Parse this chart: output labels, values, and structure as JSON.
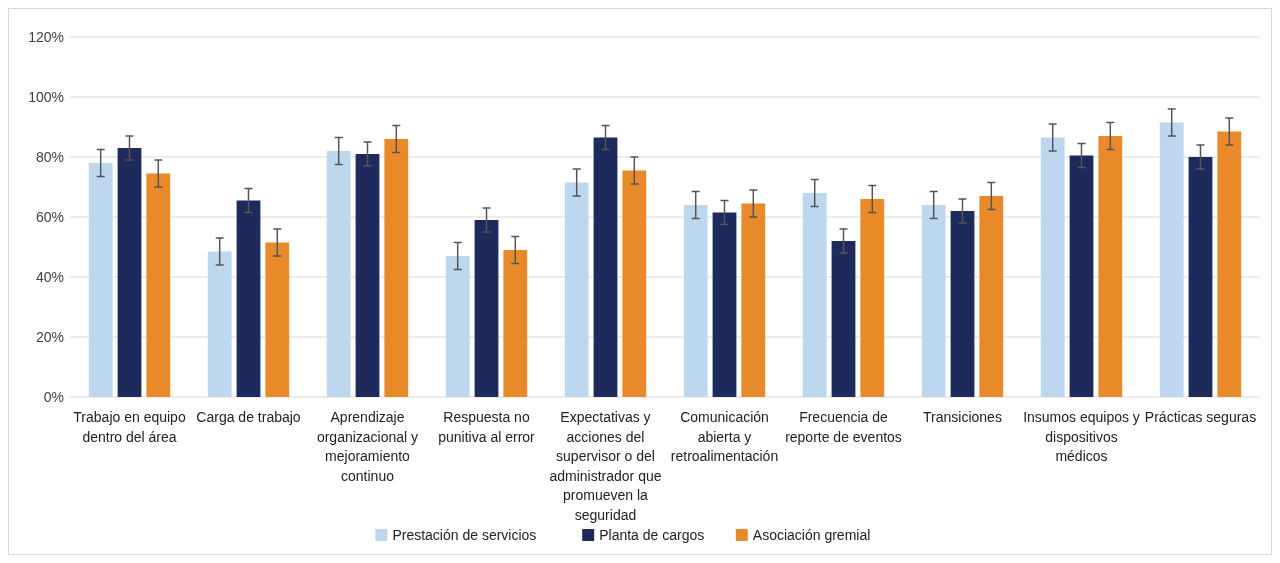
{
  "chart_data": {
    "type": "bar",
    "categories": [
      "Trabajo en equipo dentro del área",
      "Carga de trabajo",
      "Aprendizaje organizacional y mejoramiento continuo",
      "Respuesta no punitiva al error",
      "Expectativas y acciones del supervisor o del administrador que promueven la seguridad",
      "Comunicación abierta y retroalimentación",
      "Frecuencia de reporte de eventos",
      "Transiciones",
      "Insumos equipos y dispositivos médicos",
      "Prácticas seguras"
    ],
    "series": [
      {
        "name": "Prestación de servicios",
        "color": "#bdd7ee",
        "values": [
          78,
          48.5,
          82,
          47,
          71.5,
          64,
          68,
          64,
          86.5,
          91.5
        ],
        "errors": [
          4.5,
          4.5,
          4.5,
          4.5,
          4.5,
          4.5,
          4.5,
          4.5,
          4.5,
          4.5
        ]
      },
      {
        "name": "Planta de cargos",
        "color": "#1f2a5c",
        "values": [
          83,
          65.5,
          81,
          59,
          86.5,
          61.5,
          52,
          62,
          80.5,
          80
        ],
        "errors": [
          4,
          4,
          4,
          4,
          4,
          4,
          4,
          4,
          4,
          4
        ]
      },
      {
        "name": "Asociación gremial",
        "color": "#e8892a",
        "values": [
          74.5,
          51.5,
          86,
          49,
          75.5,
          64.5,
          66,
          67,
          87,
          88.5
        ],
        "errors": [
          4.5,
          4.5,
          4.5,
          4.5,
          4.5,
          4.5,
          4.5,
          4.5,
          4.5,
          4.5
        ]
      }
    ],
    "ylim": [
      0,
      120
    ],
    "yticks": [
      {
        "value": 0,
        "label": "0%"
      },
      {
        "value": 20,
        "label": "20%"
      },
      {
        "value": 40,
        "label": "40%"
      },
      {
        "value": 60,
        "label": "60%"
      },
      {
        "value": 80,
        "label": "80%"
      },
      {
        "value": 100,
        "label": "100%"
      },
      {
        "value": 120,
        "label": "120%"
      }
    ],
    "grid": "y",
    "legend": "bottom"
  }
}
